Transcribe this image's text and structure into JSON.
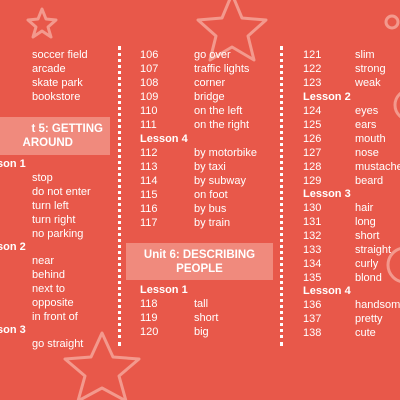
{
  "column1": {
    "top_items": [
      "soccer field",
      "arcade",
      "skate park",
      "bookstore"
    ],
    "unit_title_line1": "t 5: GETTING",
    "unit_title_line2": "AROUND",
    "lesson1_label": "son 1",
    "lesson1_items": [
      "stop",
      "do not enter",
      "turn left",
      "turn right",
      "no parking"
    ],
    "lesson2_label": "son 2",
    "lesson2_items": [
      "near",
      "behind",
      "next to",
      "opposite",
      "in front of"
    ],
    "lesson3_label": "son 3",
    "lesson3_items": [
      "go straight"
    ]
  },
  "column2": {
    "top_rows": [
      {
        "num": "106",
        "word": "go over"
      },
      {
        "num": "107",
        "word": "traffic lights"
      },
      {
        "num": "108",
        "word": "corner"
      },
      {
        "num": "109",
        "word": "bridge"
      },
      {
        "num": "110",
        "word": "on the left"
      },
      {
        "num": "111",
        "word": "on the right"
      }
    ],
    "lesson4_label": "Lesson 4",
    "lesson4_rows": [
      {
        "num": "112",
        "word": "by motorbike"
      },
      {
        "num": "113",
        "word": "by taxi"
      },
      {
        "num": "114",
        "word": "by subway"
      },
      {
        "num": "115",
        "word": "on foot"
      },
      {
        "num": "116",
        "word": "by bus"
      },
      {
        "num": "117",
        "word": "by train"
      }
    ],
    "unit_title_line1": "Unit 6: DESCRIBING",
    "unit_title_line2": "PEOPLE",
    "lesson1_label": "Lesson 1",
    "lesson1_rows": [
      {
        "num": "118",
        "word": "tall"
      },
      {
        "num": "119",
        "word": "short"
      },
      {
        "num": "120",
        "word": "big"
      }
    ]
  },
  "column3": {
    "top_rows": [
      {
        "num": "121",
        "word": "slim"
      },
      {
        "num": "122",
        "word": "strong"
      },
      {
        "num": "123",
        "word": "weak"
      }
    ],
    "lesson2_label": "Lesson 2",
    "lesson2_rows": [
      {
        "num": "124",
        "word": "eyes"
      },
      {
        "num": "125",
        "word": "ears"
      },
      {
        "num": "126",
        "word": "mouth"
      },
      {
        "num": "127",
        "word": "nose"
      },
      {
        "num": "128",
        "word": "mustache"
      },
      {
        "num": "129",
        "word": "beard"
      }
    ],
    "lesson3_label": "Lesson 3",
    "lesson3_rows": [
      {
        "num": "130",
        "word": "hair"
      },
      {
        "num": "131",
        "word": "long"
      },
      {
        "num": "132",
        "word": "short"
      },
      {
        "num": "133",
        "word": "straight"
      },
      {
        "num": "134",
        "word": "curly"
      },
      {
        "num": "135",
        "word": "blond"
      }
    ],
    "lesson4_label": "Lesson 4",
    "lesson4_rows": [
      {
        "num": "136",
        "word": "handsome"
      },
      {
        "num": "137",
        "word": "pretty"
      },
      {
        "num": "138",
        "word": "cute"
      }
    ]
  },
  "colors": {
    "background": "#e8584a",
    "unit_box": "#f08a7d",
    "text": "#ffffff"
  },
  "decorations": [
    "star-outline-icon",
    "circle-outline-icon"
  ]
}
